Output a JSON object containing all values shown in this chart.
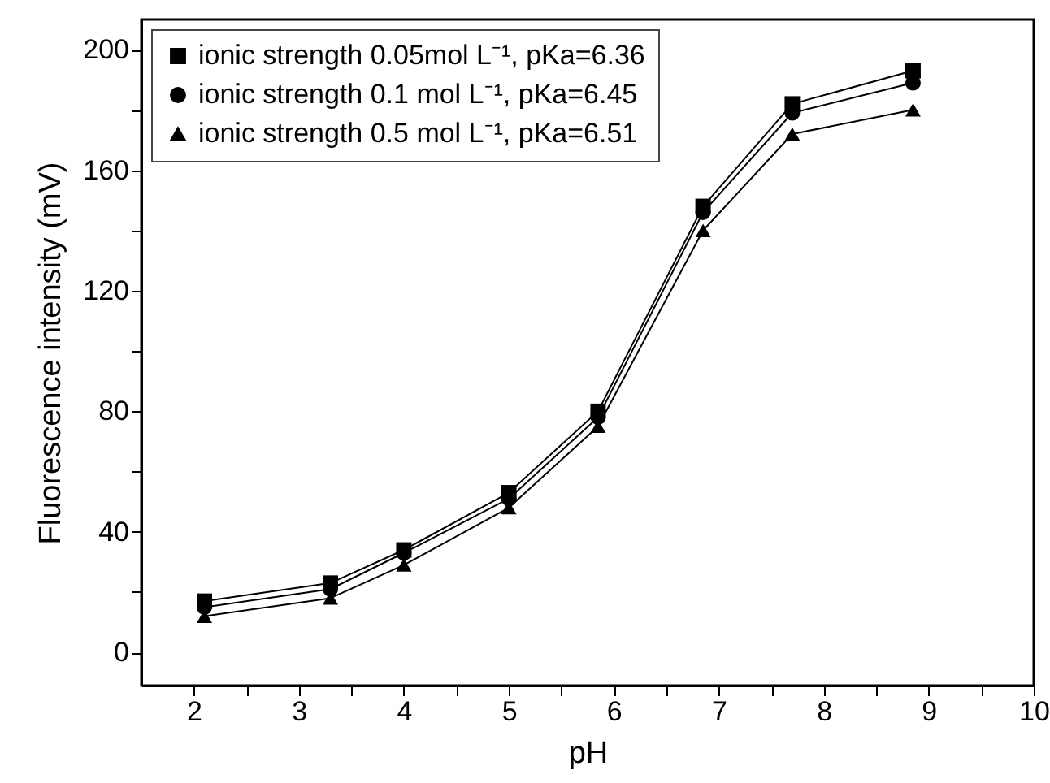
{
  "chart_data": {
    "type": "line",
    "xlabel": "pH",
    "ylabel": "Fluorescence intensity (mV)",
    "x": [
      2.1,
      3.3,
      4.0,
      5.0,
      5.85,
      6.85,
      7.7,
      8.85
    ],
    "series": [
      {
        "name": "ionic strength 0.05mol L⁻¹, pKa=6.36",
        "color": "#000000",
        "marker": "square",
        "values": [
          17,
          23,
          34,
          53,
          80,
          148,
          182,
          193
        ]
      },
      {
        "name": "ionic strength 0.1 mol L⁻¹, pKa=6.45",
        "color": "#000000",
        "marker": "circle",
        "values": [
          15,
          21,
          33,
          51,
          78,
          146,
          179,
          189
        ]
      },
      {
        "name": "ionic strength 0.5 mol L⁻¹, pKa=6.51",
        "color": "#000000",
        "marker": "triangle",
        "values": [
          12,
          18,
          29,
          48,
          75,
          140,
          172,
          180
        ]
      }
    ],
    "xlim": [
      1.5,
      10
    ],
    "xticks": [
      2,
      {
        "value": 2.5,
        "label": null
      },
      3,
      {
        "value": 3.5,
        "label": null
      },
      4,
      {
        "value": 4.5,
        "label": null
      },
      5,
      {
        "value": 5.5,
        "label": null
      },
      6,
      {
        "value": 6.5,
        "label": null
      },
      7,
      {
        "value": 7.5,
        "label": null
      },
      8,
      {
        "value": 8.5,
        "label": null
      },
      9,
      {
        "value": 9.5,
        "label": null
      },
      10
    ],
    "ylim": [
      -11,
      210
    ],
    "yticks": [
      0,
      {
        "value": 20,
        "label": null
      },
      40,
      {
        "value": 60,
        "label": null
      },
      80,
      {
        "value": 100,
        "label": null
      },
      120,
      {
        "value": 140,
        "label": null
      },
      160,
      {
        "value": 180,
        "label": null
      },
      200
    ],
    "legend": "top left",
    "line_style": "solid"
  }
}
